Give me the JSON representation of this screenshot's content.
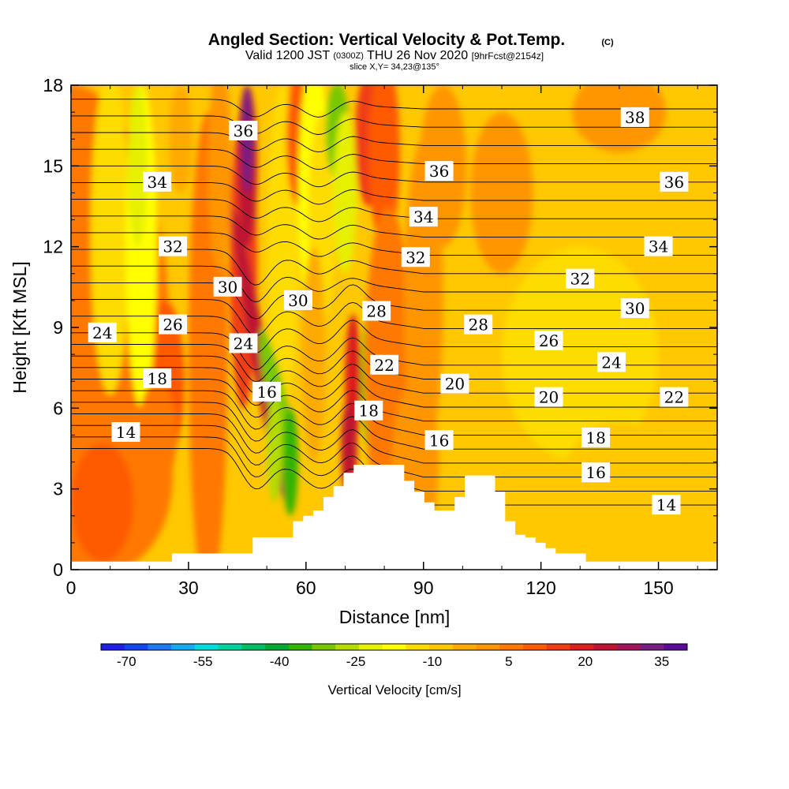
{
  "title": "Angled Section: Vertical Velocity & Pot.Temp.",
  "title_suffix": "(C)",
  "subtitle_main": "Valid 1200 JST",
  "subtitle_z": "(0300Z)",
  "subtitle_date": "THU 26 Nov 2020",
  "subtitle_fcst": "[9hrFcst@2154z]",
  "slice_text": "slice X,Y= 34,23@135°",
  "chart_data": {
    "type": "heatmap",
    "title": "Angled Section: Vertical Velocity & Pot.Temp. (C)",
    "xlabel": "Distance [nm]",
    "ylabel": "Height [Kft MSL]",
    "xlim": [
      0,
      165
    ],
    "ylim": [
      0,
      18
    ],
    "x_ticks": [
      "0",
      "30",
      "60",
      "90",
      "120",
      "150"
    ],
    "y_ticks": [
      "0",
      "3",
      "6",
      "9",
      "12",
      "15",
      "18"
    ],
    "colorbar": {
      "label": "Vertical Velocity [cm/s]",
      "tick_labels": [
        "-70",
        "-55",
        "-40",
        "-25",
        "-10",
        "5",
        "20",
        "35"
      ],
      "range": [
        -75,
        40
      ],
      "colors": [
        "#1e1ee6",
        "#1446f0",
        "#1e78f0",
        "#14aaf0",
        "#00dcdc",
        "#00d2a0",
        "#00be64",
        "#00aa32",
        "#32b400",
        "#78c800",
        "#b4dc00",
        "#e6f000",
        "#ffff00",
        "#ffdc00",
        "#ffc800",
        "#ffaa00",
        "#ff9600",
        "#ff7800",
        "#ff5a00",
        "#f03c14",
        "#dc1e1e",
        "#be1432",
        "#a0145a",
        "#781e82",
        "#5a0a96"
      ]
    },
    "theta_contours_C": [
      14,
      15,
      16,
      17,
      18,
      19,
      20,
      21,
      22,
      23,
      24,
      25,
      26,
      27,
      28,
      29,
      30,
      31,
      32,
      33,
      34,
      35,
      36,
      37,
      38
    ],
    "contour_labels": [
      {
        "text": "36",
        "x": 11,
        "y": 16.3
      },
      {
        "text": "34",
        "x": 5.5,
        "y": 14.4
      },
      {
        "text": "32",
        "x": 6.5,
        "y": 12.0
      },
      {
        "text": "30",
        "x": 10,
        "y": 10.5
      },
      {
        "text": "30",
        "x": 14.5,
        "y": 10.0
      },
      {
        "text": "24",
        "x": 2,
        "y": 8.8
      },
      {
        "text": "26",
        "x": 6.5,
        "y": 9.1
      },
      {
        "text": "24",
        "x": 11,
        "y": 8.4
      },
      {
        "text": "18",
        "x": 5.5,
        "y": 7.1
      },
      {
        "text": "16",
        "x": 12.5,
        "y": 6.6
      },
      {
        "text": "14",
        "x": 3.5,
        "y": 5.1
      },
      {
        "text": "36",
        "x": 23.5,
        "y": 14.8
      },
      {
        "text": "34",
        "x": 22.5,
        "y": 13.1
      },
      {
        "text": "32",
        "x": 22,
        "y": 11.6
      },
      {
        "text": "28",
        "x": 19.5,
        "y": 9.6
      },
      {
        "text": "22",
        "x": 20,
        "y": 7.6
      },
      {
        "text": "18",
        "x": 19,
        "y": 5.9
      },
      {
        "text": "20",
        "x": 24.5,
        "y": 6.9
      },
      {
        "text": "16",
        "x": 23.5,
        "y": 4.8
      },
      {
        "text": "28",
        "x": 26,
        "y": 9.1
      },
      {
        "text": "26",
        "x": 30.5,
        "y": 8.5
      },
      {
        "text": "20",
        "x": 30.5,
        "y": 6.4
      },
      {
        "text": "38",
        "x": 36,
        "y": 16.8
      },
      {
        "text": "36",
        "x": 38.5,
        "y": 14.4
      },
      {
        "text": "34",
        "x": 37.5,
        "y": 12.0
      },
      {
        "text": "32",
        "x": 32.5,
        "y": 10.8
      },
      {
        "text": "30",
        "x": 36,
        "y": 9.7
      },
      {
        "text": "24",
        "x": 34.5,
        "y": 7.7
      },
      {
        "text": "22",
        "x": 38.5,
        "y": 6.4
      },
      {
        "text": "18",
        "x": 33.5,
        "y": 4.9
      },
      {
        "text": "16",
        "x": 33.5,
        "y": 3.6
      },
      {
        "text": "14",
        "x": 38,
        "y": 2.4
      }
    ],
    "terrain_kft": [
      0.3,
      0.3,
      0.3,
      0.3,
      0.3,
      0.3,
      0.3,
      0.3,
      0.3,
      0.3,
      0.6,
      0.6,
      0.6,
      0.6,
      0.6,
      0.6,
      0.6,
      0.6,
      1.2,
      1.2,
      1.2,
      1.2,
      1.8,
      2.0,
      2.2,
      2.7,
      3.1,
      3.6,
      3.9,
      3.9,
      3.9,
      3.9,
      3.9,
      3.3,
      2.9,
      2.5,
      2.2,
      2.2,
      2.7,
      3.5,
      3.5,
      3.5,
      2.9,
      1.8,
      1.3,
      1.2,
      1.0,
      0.8,
      0.6,
      0.6,
      0.6,
      0.3,
      0.3,
      0.3,
      0.3,
      0.3,
      0.3,
      0.3,
      0.3,
      0.3,
      0.3,
      0.3,
      0.3,
      0.3,
      0.3
    ]
  }
}
